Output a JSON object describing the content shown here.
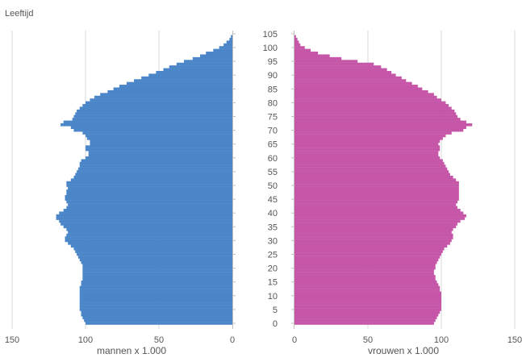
{
  "chart_data": {
    "type": "bar",
    "subtype": "population-pyramid",
    "title": "Leeftijd",
    "ylabel": "Leeftijd",
    "age_ticks": [
      "0",
      "5",
      "10",
      "15",
      "20",
      "25",
      "30",
      "35",
      "40",
      "45",
      "50",
      "55",
      "60",
      "65",
      "70",
      "75",
      "80",
      "85",
      "90",
      "95",
      "100",
      "105"
    ],
    "xlim": [
      0,
      150
    ],
    "x_ticks": [
      "0",
      "50",
      "100",
      "150"
    ],
    "grid": true,
    "ages": [
      0,
      1,
      2,
      3,
      4,
      5,
      6,
      7,
      8,
      9,
      10,
      11,
      12,
      13,
      14,
      15,
      16,
      17,
      18,
      19,
      20,
      21,
      22,
      23,
      24,
      25,
      26,
      27,
      28,
      29,
      30,
      31,
      32,
      33,
      34,
      35,
      36,
      37,
      38,
      39,
      40,
      41,
      42,
      43,
      44,
      45,
      46,
      47,
      48,
      49,
      50,
      51,
      52,
      53,
      54,
      55,
      56,
      57,
      58,
      59,
      60,
      61,
      62,
      63,
      64,
      65,
      66,
      67,
      68,
      69,
      70,
      71,
      72,
      73,
      74,
      75,
      76,
      77,
      78,
      79,
      80,
      81,
      82,
      83,
      84,
      85,
      86,
      87,
      88,
      89,
      90,
      91,
      92,
      93,
      94,
      95,
      96,
      97,
      98,
      99,
      100,
      101,
      102,
      103,
      104,
      105
    ],
    "series": [
      {
        "name": "mannen x 1.000",
        "color": "#4a86c8",
        "values": [
          100,
          101,
          102,
          103,
          103,
          104,
          104,
          104,
          104,
          104,
          104,
          104,
          104,
          104,
          103,
          103,
          102,
          102,
          102,
          102,
          102,
          102,
          103,
          104,
          105,
          106,
          107,
          108,
          110,
          112,
          114,
          114,
          113,
          112,
          113,
          115,
          117,
          118,
          120,
          120,
          118,
          115,
          113,
          112,
          113,
          114,
          114,
          113,
          113,
          112,
          113,
          113,
          110,
          108,
          107,
          106,
          105,
          104,
          104,
          103,
          100,
          98,
          98,
          100,
          100,
          97,
          97,
          99,
          100,
          102,
          108,
          110,
          117,
          115,
          109,
          108,
          107,
          106,
          104,
          102,
          100,
          97,
          94,
          90,
          85,
          81,
          77,
          72,
          67,
          62,
          57,
          52,
          47,
          43,
          38,
          33,
          27,
          22,
          18,
          13,
          9,
          6,
          4,
          2,
          1,
          0
        ]
      },
      {
        "name": "vrouwen x 1.000",
        "color": "#c656a8",
        "values": [
          95,
          96,
          97,
          98,
          99,
          100,
          100,
          100,
          100,
          100,
          100,
          100,
          99,
          99,
          98,
          97,
          96,
          96,
          95,
          95,
          96,
          96,
          97,
          98,
          99,
          100,
          101,
          102,
          104,
          106,
          107,
          108,
          108,
          107,
          108,
          110,
          111,
          113,
          116,
          117,
          115,
          113,
          111,
          110,
          111,
          112,
          112,
          112,
          112,
          112,
          112,
          112,
          110,
          108,
          106,
          105,
          104,
          103,
          102,
          101,
          99,
          98,
          98,
          99,
          99,
          98,
          99,
          101,
          103,
          107,
          115,
          117,
          121,
          117,
          113,
          111,
          110,
          109,
          107,
          105,
          103,
          100,
          97,
          95,
          91,
          87,
          84,
          80,
          76,
          73,
          69,
          66,
          63,
          59,
          54,
          43,
          32,
          24,
          16,
          11,
          7,
          4,
          3,
          2,
          1,
          0
        ]
      }
    ],
    "xlabels": [
      "mannen x 1.000",
      "vrouwen x 1.000"
    ]
  }
}
